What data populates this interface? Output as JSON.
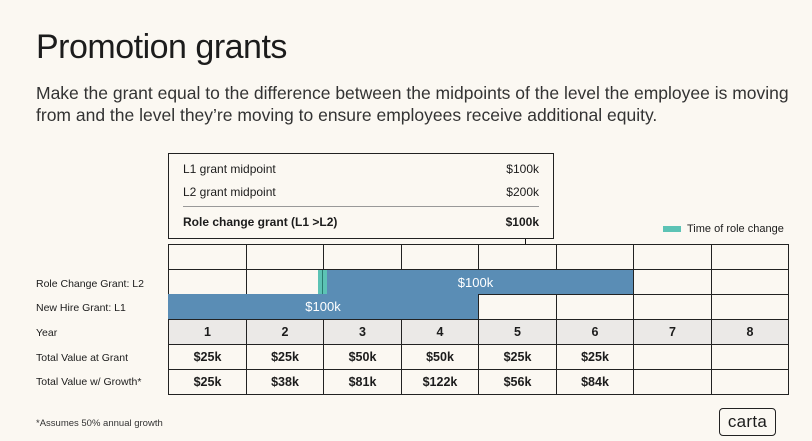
{
  "title": "Promotion grants",
  "subtitle": "Make the grant equal to the difference between the midpoints of the level the employee is moving from and the level they’re moving to ensure employees receive additional equity.",
  "summary": {
    "rows": [
      {
        "label": "L1 grant midpoint",
        "value": "$100k"
      },
      {
        "label": "L2 grant midpoint",
        "value": "$200k"
      },
      {
        "label": "Role change grant (L1 >L2)",
        "value": "$100k"
      }
    ]
  },
  "legend": {
    "label": "Time of role change",
    "color": "#5cc3b5"
  },
  "row_labels": {
    "role_change": "Role Change Grant: L2",
    "new_hire": "New Hire Grant: L1",
    "year": "Year",
    "total_at_grant": "Total Value at Grant",
    "total_with_growth": "Total Value w/ Growth*"
  },
  "bars": {
    "role_change": {
      "label": "$100k",
      "start_year": 3,
      "end_year": 6,
      "color": "#5a8db5"
    },
    "new_hire": {
      "label": "$100k",
      "start_year": 1,
      "end_year": 4,
      "color": "#5a8db5"
    }
  },
  "years": [
    "1",
    "2",
    "3",
    "4",
    "5",
    "6",
    "7",
    "8"
  ],
  "total_at_grant": [
    "$25k",
    "$25k",
    "$50k",
    "$50k",
    "$25k",
    "$25k",
    "",
    ""
  ],
  "total_with_growth": [
    "$25k",
    "$38k",
    "$81k",
    "$122k",
    "$56k",
    "$84k",
    "",
    ""
  ],
  "footnote": "*Assumes 50% annual growth",
  "logo": "carta"
}
